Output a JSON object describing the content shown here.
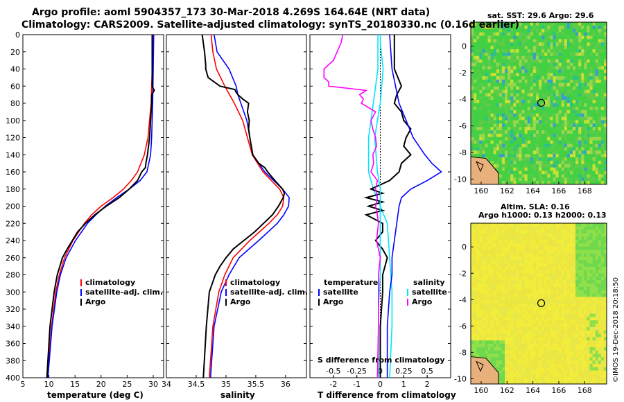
{
  "header": {
    "line1": "Argo profile: aoml 5904357_173 30-Mar-2018 4.269S 164.64E (NRT data)",
    "line2": "Climatology: CARS2009. Satellite-adjusted climatology: synTS_20180330.nc (0.16d earlier)"
  },
  "maps": {
    "sst_title": "sat. SST: 29.6 Argo: 29.6",
    "alt_title1": "Altim. SLA: 0.16",
    "alt_title2": "Argo h1000: 0.13 h2000: 0.13",
    "xticks": [
      "160",
      "162",
      "164",
      "166",
      "168"
    ],
    "yticks": [
      "0",
      "-2",
      "-4",
      "-6",
      "-8",
      "-10"
    ],
    "marker_lon": 164.64,
    "marker_lat": -4.269
  },
  "credit": "©IMOS 19-Dec-2018 20:18:50",
  "colors": {
    "climatology": "#ff0000",
    "satellite": "#0000ff",
    "argo": "#000000",
    "t_sat": "#00e5ff",
    "s_magenta": "#ff00ff"
  },
  "chart_data": [
    {
      "type": "line",
      "title": "",
      "xlabel": "temperature (deg C)",
      "ylabel": "",
      "xlim": [
        5,
        32
      ],
      "ylim": [
        400,
        0
      ],
      "xticks": [
        "5",
        "10",
        "15",
        "20",
        "25",
        "30"
      ],
      "yticks": [
        "0",
        "20",
        "40",
        "60",
        "80",
        "100",
        "120",
        "140",
        "160",
        "180",
        "200",
        "220",
        "240",
        "260",
        "280",
        "300",
        "320",
        "340",
        "360",
        "380",
        "400"
      ],
      "legend": [
        "climatology",
        "satellite-adj. clim.",
        "Argo"
      ],
      "series": [
        {
          "name": "climatology",
          "depth": [
            0,
            40,
            80,
            120,
            140,
            160,
            170,
            180,
            190,
            200,
            210,
            220,
            240,
            260,
            280,
            300,
            340,
            400
          ],
          "values": [
            29.9,
            29.8,
            29.6,
            29.0,
            28.3,
            27.0,
            25.8,
            24.3,
            22.3,
            20.0,
            18.2,
            16.8,
            14.6,
            13.0,
            12.0,
            11.3,
            10.5,
            9.7
          ]
        },
        {
          "name": "satellite-adj. clim.",
          "depth": [
            0,
            40,
            80,
            120,
            140,
            160,
            170,
            180,
            190,
            200,
            210,
            220,
            240,
            260,
            280,
            300,
            340,
            400
          ],
          "values": [
            30.1,
            30.0,
            29.9,
            29.7,
            29.5,
            28.8,
            27.5,
            25.4,
            23.0,
            20.8,
            19.0,
            17.4,
            15.1,
            13.3,
            12.2,
            11.5,
            10.6,
            9.8
          ]
        },
        {
          "name": "Argo",
          "depth": [
            0,
            20,
            40,
            60,
            65,
            70,
            80,
            100,
            120,
            140,
            150,
            155,
            160,
            165,
            170,
            180,
            190,
            200,
            210,
            220,
            230,
            240,
            250,
            260,
            270,
            280,
            300,
            340,
            400
          ],
          "values": [
            29.8,
            29.8,
            29.8,
            29.8,
            30.2,
            29.7,
            29.7,
            29.5,
            29.3,
            28.9,
            28.6,
            28.5,
            27.8,
            27.4,
            27.0,
            25.4,
            23.5,
            21.0,
            18.8,
            17.0,
            15.5,
            14.5,
            13.5,
            12.6,
            12.1,
            11.6,
            11.0,
            10.2,
            9.6
          ]
        }
      ]
    },
    {
      "type": "line",
      "title": "",
      "xlabel": "salinity",
      "ylabel": "",
      "xlim": [
        34.0,
        36.35
      ],
      "ylim": [
        400,
        0
      ],
      "xticks": [
        "34",
        "34.5",
        "35",
        "35.5",
        "36"
      ],
      "legend": [
        "climatology",
        "satellite-adj. clim.",
        "Argo"
      ],
      "series": [
        {
          "name": "climatology",
          "depth": [
            0,
            20,
            40,
            60,
            80,
            100,
            120,
            140,
            160,
            170,
            180,
            190,
            200,
            210,
            220,
            240,
            260,
            280,
            300,
            340,
            400
          ],
          "values": [
            34.75,
            34.78,
            34.84,
            34.98,
            35.14,
            35.28,
            35.36,
            35.44,
            35.62,
            35.76,
            35.9,
            35.97,
            35.95,
            35.86,
            35.72,
            35.4,
            35.12,
            34.98,
            34.88,
            34.78,
            34.72
          ]
        },
        {
          "name": "satellite-adj. clim.",
          "depth": [
            0,
            20,
            40,
            60,
            70,
            80,
            100,
            120,
            140,
            160,
            170,
            180,
            190,
            200,
            210,
            220,
            240,
            260,
            280,
            300,
            340,
            400
          ],
          "values": [
            34.8,
            34.85,
            35.05,
            35.17,
            35.2,
            35.25,
            35.35,
            35.4,
            35.45,
            35.65,
            35.8,
            35.95,
            36.06,
            36.05,
            35.97,
            35.86,
            35.55,
            35.22,
            35.05,
            34.92,
            34.8,
            34.74
          ]
        },
        {
          "name": "Argo",
          "depth": [
            0,
            20,
            35,
            40,
            50,
            60,
            64,
            66,
            70,
            75,
            80,
            90,
            100,
            110,
            120,
            140,
            150,
            155,
            160,
            170,
            180,
            185,
            190,
            200,
            210,
            220,
            230,
            240,
            250,
            260,
            270,
            280,
            300,
            340,
            400
          ],
          "values": [
            34.6,
            34.64,
            34.66,
            34.66,
            34.7,
            34.9,
            35.15,
            35.16,
            35.2,
            35.28,
            35.38,
            35.36,
            35.39,
            35.38,
            35.4,
            35.45,
            35.55,
            35.65,
            35.7,
            35.82,
            35.95,
            35.98,
            35.96,
            35.88,
            35.78,
            35.63,
            35.48,
            35.3,
            35.12,
            35.0,
            34.9,
            34.82,
            34.72,
            34.67,
            34.62
          ]
        }
      ]
    },
    {
      "type": "line",
      "title": "",
      "xlabel": "T difference from climatology",
      "xlabel_top": "S difference from climatology",
      "ylabel": "",
      "xlim": [
        -3,
        3
      ],
      "ylim": [
        400,
        0
      ],
      "xticks": [
        "-2",
        "-1",
        "0",
        "1",
        "2"
      ],
      "xticks_top": [
        "-0.5",
        "-0.25",
        "0",
        "0.25",
        "0.5"
      ],
      "legend_left": [
        "temperature",
        "satellite",
        "Argo"
      ],
      "legend_right": [
        "salinity",
        "satellite",
        "Argo"
      ],
      "series": [
        {
          "name": "T satellite",
          "depth": [
            0,
            40,
            80,
            120,
            160,
            180,
            200,
            220,
            260,
            300,
            340,
            400
          ],
          "values": [
            -0.1,
            -0.1,
            -0.3,
            -0.5,
            -0.5,
            -0.3,
            0.0,
            0.3,
            0.4,
            0.5,
            0.5,
            0.4
          ]
        },
        {
          "name": "T Argo",
          "depth": [
            0,
            40,
            60,
            70,
            80,
            90,
            100,
            110,
            120,
            130,
            140,
            150,
            160,
            170,
            180,
            185,
            190,
            195,
            200,
            205,
            210,
            220,
            230,
            240,
            250,
            260,
            270,
            280,
            300,
            340,
            400
          ],
          "values": [
            0.6,
            0.6,
            0.9,
            0.7,
            0.6,
            0.9,
            1.0,
            1.3,
            1.1,
            1.0,
            1.3,
            0.9,
            0.8,
            0.4,
            -0.4,
            0.1,
            -0.6,
            0.1,
            -0.5,
            0.1,
            -0.6,
            0.1,
            0.1,
            -0.2,
            0.1,
            0.3,
            0.2,
            0.1,
            0.1,
            0.0,
            0.0
          ]
        },
        {
          "name": "T satellite-adj.",
          "depth": [
            0,
            40,
            80,
            120,
            140,
            150,
            160,
            170,
            180,
            190,
            200,
            220,
            240,
            260,
            280,
            300,
            340,
            400
          ],
          "values": [
            0.4,
            0.5,
            0.8,
            1.4,
            1.9,
            2.2,
            2.6,
            2.0,
            1.3,
            0.9,
            0.8,
            0.7,
            0.6,
            0.5,
            0.5,
            0.4,
            0.3,
            0.3
          ]
        },
        {
          "name": "S satellite",
          "depth": [
            0,
            10,
            40,
            80,
            120,
            160,
            180,
            200,
            240,
            280,
            300,
            320,
            340,
            400
          ],
          "values": [
            0.0,
            0.0,
            0.03,
            0.0,
            -0.06,
            -0.03,
            0.0,
            0.0,
            0.0,
            0.0,
            -0.01,
            -0.02,
            -0.02,
            -0.02
          ]
        },
        {
          "name": "S Argo",
          "depth": [
            0,
            10,
            30,
            40,
            50,
            55,
            60,
            65,
            70,
            75,
            80,
            90,
            100,
            110,
            120,
            130,
            140,
            150,
            160,
            170,
            180,
            190,
            200,
            210,
            220,
            240,
            260,
            280,
            300,
            340,
            400
          ],
          "values": [
            -0.4,
            -0.42,
            -0.5,
            -0.6,
            -0.6,
            -0.55,
            -0.55,
            -0.15,
            -0.22,
            -0.18,
            -0.2,
            -0.05,
            -0.1,
            -0.08,
            -0.05,
            -0.04,
            -0.08,
            -0.07,
            -0.1,
            -0.03,
            -0.05,
            -0.03,
            -0.05,
            -0.03,
            -0.02,
            -0.04,
            0.0,
            -0.02,
            -0.02,
            -0.02,
            -0.03
          ]
        }
      ]
    }
  ]
}
